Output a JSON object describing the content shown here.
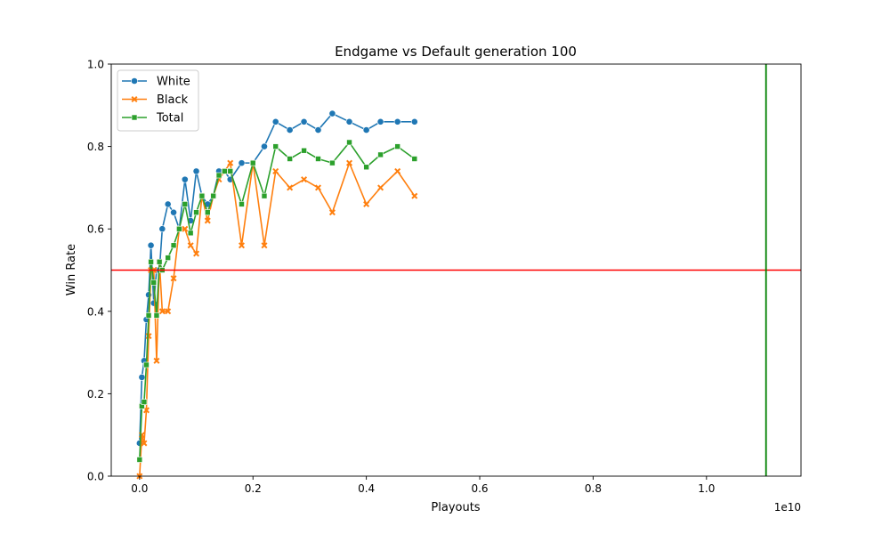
{
  "chart_data": {
    "type": "line",
    "title": "Endgame vs Default generation 100",
    "xlabel": "Playouts",
    "ylabel": "Win Rate",
    "x_offset_label": "1e10",
    "xlim": [
      -0.05,
      1.1667
    ],
    "ylim": [
      0,
      1
    ],
    "x_ticks": [
      0.0,
      0.2,
      0.4,
      0.6,
      0.8,
      1.0
    ],
    "x_tick_labels": [
      "0.0",
      "0.2",
      "0.4",
      "0.6",
      "0.8",
      "1.0"
    ],
    "y_ticks": [
      0.0,
      0.2,
      0.4,
      0.6,
      0.8,
      1.0
    ],
    "y_tick_labels": [
      "0.0",
      "0.2",
      "0.4",
      "0.6",
      "0.8",
      "1.0"
    ],
    "legend_position": "top-left",
    "grid": false,
    "x": [
      0.0,
      0.004,
      0.008,
      0.012,
      0.016,
      0.02,
      0.025,
      0.03,
      0.035,
      0.04,
      0.05,
      0.06,
      0.07,
      0.08,
      0.09,
      0.1,
      0.11,
      0.12,
      0.13,
      0.14,
      0.15,
      0.16,
      0.18,
      0.2,
      0.22,
      0.24,
      0.265,
      0.29,
      0.315,
      0.34,
      0.37,
      0.4,
      0.425,
      0.455,
      0.485
    ],
    "series": [
      {
        "name": "White",
        "color": "#1f77b4",
        "marker": "circle",
        "values": [
          0.08,
          0.24,
          0.28,
          0.38,
          0.44,
          0.56,
          0.42,
          0.5,
          0.5,
          0.6,
          0.66,
          0.64,
          0.6,
          0.72,
          0.62,
          0.74,
          0.68,
          0.66,
          0.68,
          0.74,
          0.74,
          0.72,
          0.76,
          0.76,
          0.8,
          0.86,
          0.84,
          0.86,
          0.84,
          0.88,
          0.86,
          0.84,
          0.86,
          0.86,
          0.86
        ]
      },
      {
        "name": "Black",
        "color": "#ff7f0e",
        "marker": "x",
        "values": [
          0.0,
          0.1,
          0.08,
          0.16,
          0.34,
          0.5,
          0.5,
          0.28,
          0.52,
          0.4,
          0.4,
          0.48,
          0.6,
          0.6,
          0.56,
          0.54,
          0.68,
          0.62,
          0.68,
          0.72,
          0.74,
          0.76,
          0.56,
          0.76,
          0.56,
          0.74,
          0.7,
          0.72,
          0.7,
          0.64,
          0.76,
          0.66,
          0.7,
          0.74,
          0.68
        ]
      },
      {
        "name": "Total",
        "color": "#2ca02c",
        "marker": "square",
        "values": [
          0.04,
          0.17,
          0.18,
          0.27,
          0.39,
          0.52,
          0.47,
          0.39,
          0.52,
          0.5,
          0.53,
          0.56,
          0.6,
          0.66,
          0.59,
          0.64,
          0.68,
          0.64,
          0.68,
          0.73,
          0.74,
          0.74,
          0.66,
          0.76,
          0.68,
          0.8,
          0.77,
          0.79,
          0.77,
          0.76,
          0.81,
          0.75,
          0.78,
          0.8,
          0.77
        ]
      }
    ],
    "reference_lines": [
      {
        "orientation": "horizontal",
        "value": 0.5,
        "color": "#ff0000"
      },
      {
        "orientation": "vertical",
        "value": 1.105,
        "color": "#008000"
      }
    ]
  }
}
